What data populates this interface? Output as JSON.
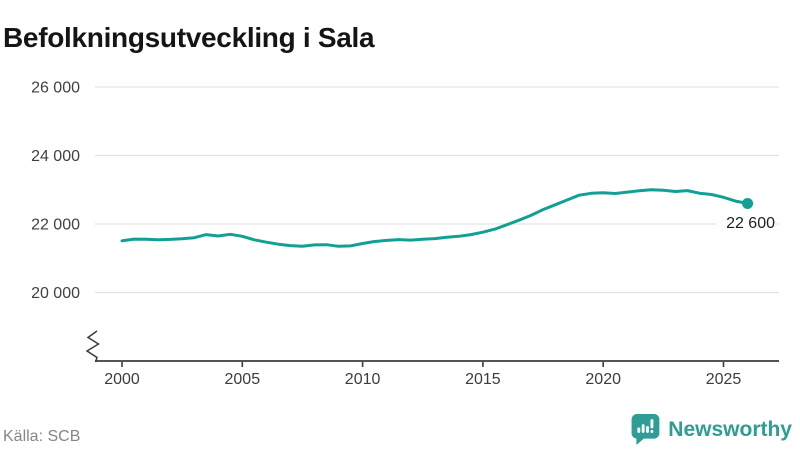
{
  "header": {
    "title": "Befolkningsutveckling i Sala"
  },
  "source": {
    "label": "Källa: SCB"
  },
  "branding": {
    "name": "Newsworthy",
    "icon": "bar-chart-speech-bubble-icon",
    "color": "#2E9D93"
  },
  "chart_data": {
    "type": "line",
    "title": "Befolkningsutveckling i Sala",
    "xlabel": "",
    "ylabel": "",
    "grid": "horizontal",
    "axis_break": true,
    "x_range": [
      1998.9,
      2027.3
    ],
    "y_range": [
      19800,
      26800
    ],
    "line_color": "#12A095",
    "grid_color": "#E4E4E4",
    "axis_color": "#3C3C3C",
    "x_ticks": [
      {
        "value": 2000,
        "label": "2000"
      },
      {
        "value": 2005,
        "label": "2005"
      },
      {
        "value": 2010,
        "label": "2010"
      },
      {
        "value": 2015,
        "label": "2015"
      },
      {
        "value": 2020,
        "label": "2020"
      },
      {
        "value": 2025,
        "label": "2025"
      }
    ],
    "y_ticks": [
      {
        "value": 20000,
        "label": "20 000"
      },
      {
        "value": 22000,
        "label": "22 000"
      },
      {
        "value": 24000,
        "label": "24 000"
      },
      {
        "value": 26000,
        "label": "26 000"
      }
    ],
    "series": [
      {
        "name": "Befolkning i Sala",
        "points": [
          [
            2000.0,
            21510
          ],
          [
            2000.5,
            21560
          ],
          [
            2001.0,
            21555
          ],
          [
            2001.5,
            21540
          ],
          [
            2002.0,
            21550
          ],
          [
            2002.5,
            21570
          ],
          [
            2003.0,
            21600
          ],
          [
            2003.5,
            21690
          ],
          [
            2004.0,
            21650
          ],
          [
            2004.5,
            21700
          ],
          [
            2005.0,
            21640
          ],
          [
            2005.5,
            21540
          ],
          [
            2006.0,
            21470
          ],
          [
            2006.5,
            21410
          ],
          [
            2007.0,
            21370
          ],
          [
            2007.5,
            21350
          ],
          [
            2008.0,
            21390
          ],
          [
            2008.5,
            21395
          ],
          [
            2009.0,
            21350
          ],
          [
            2009.5,
            21360
          ],
          [
            2010.0,
            21430
          ],
          [
            2010.5,
            21490
          ],
          [
            2011.0,
            21520
          ],
          [
            2011.5,
            21545
          ],
          [
            2012.0,
            21530
          ],
          [
            2012.5,
            21555
          ],
          [
            2013.0,
            21575
          ],
          [
            2013.5,
            21615
          ],
          [
            2014.0,
            21640
          ],
          [
            2014.5,
            21690
          ],
          [
            2015.0,
            21760
          ],
          [
            2015.5,
            21850
          ],
          [
            2016.0,
            21980
          ],
          [
            2016.5,
            22110
          ],
          [
            2017.0,
            22250
          ],
          [
            2017.5,
            22420
          ],
          [
            2018.0,
            22560
          ],
          [
            2018.5,
            22700
          ],
          [
            2019.0,
            22840
          ],
          [
            2019.5,
            22895
          ],
          [
            2020.0,
            22910
          ],
          [
            2020.5,
            22890
          ],
          [
            2021.0,
            22930
          ],
          [
            2021.5,
            22970
          ],
          [
            2022.0,
            23000
          ],
          [
            2022.5,
            22985
          ],
          [
            2023.0,
            22950
          ],
          [
            2023.5,
            22975
          ],
          [
            2024.0,
            22900
          ],
          [
            2024.5,
            22860
          ],
          [
            2025.0,
            22780
          ],
          [
            2025.5,
            22670
          ],
          [
            2026.0,
            22600
          ]
        ]
      }
    ],
    "end_label": {
      "text": "22 600",
      "value": 22600,
      "year": 2026.0
    }
  }
}
